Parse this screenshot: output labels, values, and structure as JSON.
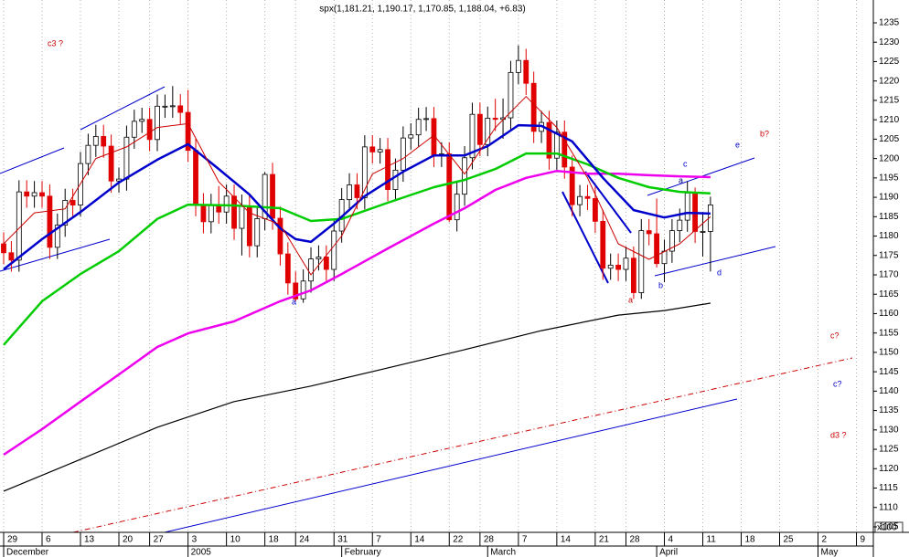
{
  "chart_data": {
    "type": "candlestick",
    "title": "spx(1,181.21, 1,190.17, 1,170.85, 1,188.04, +6.83)",
    "xlim": [
      -0.476,
      113.2
    ],
    "ylim": [
      1103.58,
      1240.89
    ],
    "yticks": [
      1105,
      1110,
      1115,
      1120,
      1125,
      1130,
      1135,
      1140,
      1145,
      1150,
      1155,
      1160,
      1165,
      1170,
      1175,
      1180,
      1185,
      1190,
      1195,
      1200,
      1205,
      1210,
      1215,
      1220,
      1225,
      1230,
      1235
    ],
    "axis_unit": "x100",
    "grid": true,
    "xticks": [
      {
        "value": 0,
        "label": "29"
      },
      {
        "value": 5,
        "label": "6"
      },
      {
        "value": 10,
        "label": "13"
      },
      {
        "value": 15,
        "label": "20"
      },
      {
        "value": 19,
        "label": "27"
      },
      {
        "value": 24,
        "label": "3"
      },
      {
        "value": 29,
        "label": "10"
      },
      {
        "value": 34,
        "label": "18"
      },
      {
        "value": 38,
        "label": "24"
      },
      {
        "value": 43,
        "label": "31"
      },
      {
        "value": 48,
        "label": "7"
      },
      {
        "value": 53,
        "label": "14"
      },
      {
        "value": 58,
        "label": "22"
      },
      {
        "value": 62,
        "label": "28"
      },
      {
        "value": 67,
        "label": "7"
      },
      {
        "value": 72,
        "label": "14"
      },
      {
        "value": 77,
        "label": "21"
      },
      {
        "value": 81,
        "label": "28"
      },
      {
        "value": 86,
        "label": "4"
      },
      {
        "value": 91,
        "label": "11"
      },
      {
        "value": 96,
        "label": "18"
      },
      {
        "value": 101,
        "label": "25"
      },
      {
        "value": 106,
        "label": "2"
      },
      {
        "value": 111,
        "label": "9"
      }
    ],
    "month_ticks": [
      {
        "value": 0,
        "label": "December"
      },
      {
        "value": 24,
        "label": "2005"
      },
      {
        "value": 44,
        "label": "February"
      },
      {
        "value": 63,
        "label": "March"
      },
      {
        "value": 85,
        "label": "April"
      },
      {
        "value": 106,
        "label": "May"
      }
    ],
    "candles": {
      "up_color": "#ffffff",
      "down_color": "#e00000",
      "open": [
        1178.0,
        1175.7,
        1173.8,
        1191.4,
        1190.3,
        1191.2,
        1190.3,
        1177.1,
        1182.8,
        1189.2,
        1188.0,
        1198.7,
        1203.4,
        1205.7,
        1203.2,
        1194.2,
        1194.7,
        1205.5,
        1209.6,
        1210.1,
        1204.9,
        1213.5,
        1213.5,
        1213.6,
        1211.9,
        1202.1,
        1188.1,
        1183.7,
        1187.9,
        1186.2,
        1190.3,
        1182.0,
        1187.7,
        1177.5,
        1184.5,
        1195.9,
        1184.6,
        1175.4,
        1167.9,
        1163.8,
        1168.4,
        1174.1,
        1174.6,
        1171.4,
        1181.3,
        1189.4,
        1193.2,
        1189.9,
        1203.0,
        1201.7,
        1202.3,
        1192.0,
        1197.0,
        1205.3,
        1206.1,
        1210.1,
        1210.3,
        1200.8,
        1201.2,
        1184.2,
        1190.8,
        1200.2,
        1211.4,
        1203.6,
        1210.4,
        1210.1,
        1210.5,
        1222.2,
        1225.3,
        1219.4,
        1207.0,
        1209.3,
        1200.1,
        1206.8,
        1197.8,
        1188.1,
        1190.2,
        1189.7,
        1183.8,
        1171.7,
        1172.5,
        1171.4,
        1174.3,
        1165.4,
        1181.4,
        1180.6,
        1172.9,
        1176.1,
        1181.4,
        1184.1,
        1191.1,
        1181.2,
        1181.21
      ],
      "high": [
        1181.0,
        1178.7,
        1194.4,
        1194.4,
        1194.2,
        1194.2,
        1193.3,
        1185.8,
        1192.2,
        1192.2,
        1201.7,
        1206.4,
        1208.7,
        1208.7,
        1206.2,
        1197.7,
        1208.5,
        1212.6,
        1213.1,
        1213.1,
        1216.5,
        1216.5,
        1218.7,
        1216.6,
        1217.7,
        1205.1,
        1191.1,
        1190.9,
        1192.9,
        1193.3,
        1193.3,
        1190.7,
        1190.7,
        1187.5,
        1196.5,
        1198.9,
        1187.6,
        1178.4,
        1170.9,
        1171.4,
        1177.1,
        1177.6,
        1177.6,
        1184.3,
        1192.4,
        1196.2,
        1196.2,
        1206.0,
        1206.0,
        1205.3,
        1205.3,
        1200.0,
        1208.3,
        1209.1,
        1213.1,
        1213.3,
        1213.3,
        1204.2,
        1204.2,
        1193.8,
        1203.2,
        1214.4,
        1214.4,
        1213.4,
        1215.4,
        1215.5,
        1225.2,
        1229.2,
        1228.3,
        1222.4,
        1212.3,
        1212.3,
        1209.8,
        1209.8,
        1200.8,
        1193.2,
        1193.2,
        1192.7,
        1186.8,
        1175.5,
        1175.5,
        1177.3,
        1177.3,
        1184.4,
        1184.4,
        1189.7,
        1179.1,
        1184.4,
        1187.1,
        1194.1,
        1192.5,
        1186.2,
        1190.17
      ],
      "low": [
        1172.7,
        1170.8,
        1170.8,
        1187.3,
        1187.3,
        1187.3,
        1174.1,
        1174.1,
        1179.8,
        1185.0,
        1185.0,
        1195.7,
        1200.4,
        1200.2,
        1191.2,
        1191.2,
        1191.7,
        1202.5,
        1206.6,
        1201.9,
        1201.9,
        1210.5,
        1210.5,
        1208.9,
        1199.1,
        1185.1,
        1180.7,
        1180.7,
        1183.2,
        1183.2,
        1179.0,
        1175.0,
        1174.5,
        1174.5,
        1181.5,
        1181.6,
        1172.4,
        1164.9,
        1163.2,
        1162.8,
        1165.4,
        1171.1,
        1168.4,
        1168.4,
        1178.3,
        1186.4,
        1186.9,
        1186.9,
        1198.7,
        1198.7,
        1189.0,
        1189.0,
        1194.0,
        1202.3,
        1203.1,
        1207.1,
        1197.8,
        1197.8,
        1183.6,
        1181.2,
        1187.8,
        1197.2,
        1200.6,
        1200.6,
        1207.1,
        1205.1,
        1207.5,
        1219.2,
        1216.4,
        1204.0,
        1204.0,
        1197.1,
        1197.1,
        1194.8,
        1185.1,
        1185.1,
        1186.7,
        1180.8,
        1168.7,
        1168.7,
        1168.4,
        1168.4,
        1163.8,
        1163.8,
        1177.6,
        1171.9,
        1168.1,
        1173.1,
        1178.4,
        1181.1,
        1178.2,
        1174.7,
        1170.85
      ],
      "close": [
        1175.7,
        1173.8,
        1191.4,
        1190.3,
        1191.2,
        1190.3,
        1177.1,
        1182.8,
        1189.2,
        1188.0,
        1198.7,
        1203.4,
        1205.7,
        1203.2,
        1194.2,
        1194.7,
        1205.5,
        1209.6,
        1210.1,
        1204.9,
        1213.5,
        1213.5,
        1213.6,
        1211.9,
        1202.1,
        1188.1,
        1183.7,
        1187.9,
        1186.2,
        1190.3,
        1182.0,
        1187.7,
        1177.5,
        1184.5,
        1195.9,
        1184.6,
        1175.4,
        1167.9,
        1163.8,
        1168.4,
        1174.1,
        1174.6,
        1171.4,
        1181.3,
        1189.4,
        1193.2,
        1189.9,
        1203.0,
        1201.7,
        1202.3,
        1192.0,
        1197.0,
        1205.3,
        1206.1,
        1210.1,
        1210.3,
        1200.8,
        1201.2,
        1184.2,
        1190.8,
        1200.2,
        1211.4,
        1203.6,
        1210.4,
        1210.1,
        1210.5,
        1222.2,
        1225.3,
        1219.4,
        1207.0,
        1209.3,
        1200.1,
        1206.8,
        1197.8,
        1188.1,
        1190.2,
        1189.7,
        1183.8,
        1171.7,
        1172.5,
        1171.4,
        1174.3,
        1165.4,
        1181.4,
        1180.6,
        1172.9,
        1176.1,
        1181.4,
        1184.1,
        1191.1,
        1181.2,
        1181.2,
        1188.04
      ]
    },
    "series": [
      {
        "color": "#000000",
        "x": [
          0,
          10,
          20,
          30,
          40,
          50,
          60,
          70,
          80,
          86,
          92
        ],
        "values": [
          1114.2,
          1122.4,
          1130.7,
          1137.3,
          1141.3,
          1146.0,
          1150.7,
          1155.6,
          1159.6,
          1160.8,
          1162.7
        ]
      },
      {
        "color": "#ee00ee",
        "x": [
          0,
          5,
          10,
          15,
          20,
          24,
          30,
          36,
          40,
          44,
          50,
          56,
          60,
          64,
          68,
          72,
          76,
          80,
          84,
          88,
          92
        ],
        "values": [
          1123.6,
          1130.2,
          1137.3,
          1144.3,
          1151.4,
          1154.9,
          1158.0,
          1163.2,
          1166.0,
          1170.2,
          1176.8,
          1183.2,
          1187.2,
          1191.9,
          1195.0,
          1196.8,
          1196.1,
          1196.1,
          1195.7,
          1195.4,
          1195.2
        ]
      },
      {
        "color": "#00cc00",
        "x": [
          0,
          5,
          10,
          15,
          20,
          24,
          30,
          36,
          40,
          44,
          50,
          56,
          60,
          64,
          68,
          72,
          76,
          80,
          84,
          88,
          92
        ],
        "values": [
          1151.9,
          1163.2,
          1170.2,
          1176.1,
          1184.4,
          1188.1,
          1187.9,
          1187.2,
          1183.9,
          1184.4,
          1188.6,
          1192.6,
          1194.5,
          1197.3,
          1201.3,
          1201.3,
          1198.5,
          1195.0,
          1192.6,
          1191.4,
          1191.0
        ]
      },
      {
        "color": "#0000cc",
        "x": [
          0,
          5,
          10,
          15,
          20,
          24,
          28,
          32,
          36,
          38,
          40,
          43,
          47,
          52,
          56,
          60,
          63,
          67,
          70,
          74,
          78,
          82,
          86,
          89,
          92
        ],
        "values": [
          1171.4,
          1179.2,
          1186.2,
          1193.8,
          1199.7,
          1203.7,
          1197.3,
          1190.7,
          1182.0,
          1179.2,
          1178.5,
          1183.2,
          1190.3,
          1196.6,
          1200.8,
          1200.8,
          1203.2,
          1208.6,
          1208.4,
          1204.4,
          1195.0,
          1186.7,
          1184.8,
          1186.0,
          1185.8
        ]
      },
      {
        "color": "#cc0000",
        "x": [
          0,
          4,
          8,
          12,
          16,
          20,
          24,
          28,
          32,
          36,
          40,
          44,
          48,
          52,
          56,
          60,
          64,
          68,
          72,
          76,
          80,
          84,
          88,
          92
        ],
        "values": [
          1178,
          1186,
          1187,
          1200,
          1203,
          1208,
          1209,
          1194,
          1186,
          1183,
          1170,
          1180,
          1196,
          1200,
          1206,
          1196,
          1208,
          1216,
          1208,
          1195,
          1178,
          1174,
          1178,
          1185
        ]
      }
    ],
    "annotations": [
      {
        "text": "c3 ?",
        "color": "#cc0000"
      },
      {
        "text": "a",
        "color": "#0000cc"
      },
      {
        "text": "a",
        "color": "#cc0000"
      },
      {
        "text": "b",
        "color": "#0000cc"
      },
      {
        "text": "a",
        "color": "#000080"
      },
      {
        "text": "c",
        "color": "#0000cc"
      },
      {
        "text": "e",
        "color": "#0000cc"
      },
      {
        "text": "b?",
        "color": "#cc0000"
      },
      {
        "text": "d",
        "color": "#0000cc"
      },
      {
        "text": "c?",
        "color": "#cc0000"
      },
      {
        "text": "c?",
        "color": "#0000cc"
      },
      {
        "text": "d3 ?",
        "color": "#cc0000"
      }
    ]
  }
}
